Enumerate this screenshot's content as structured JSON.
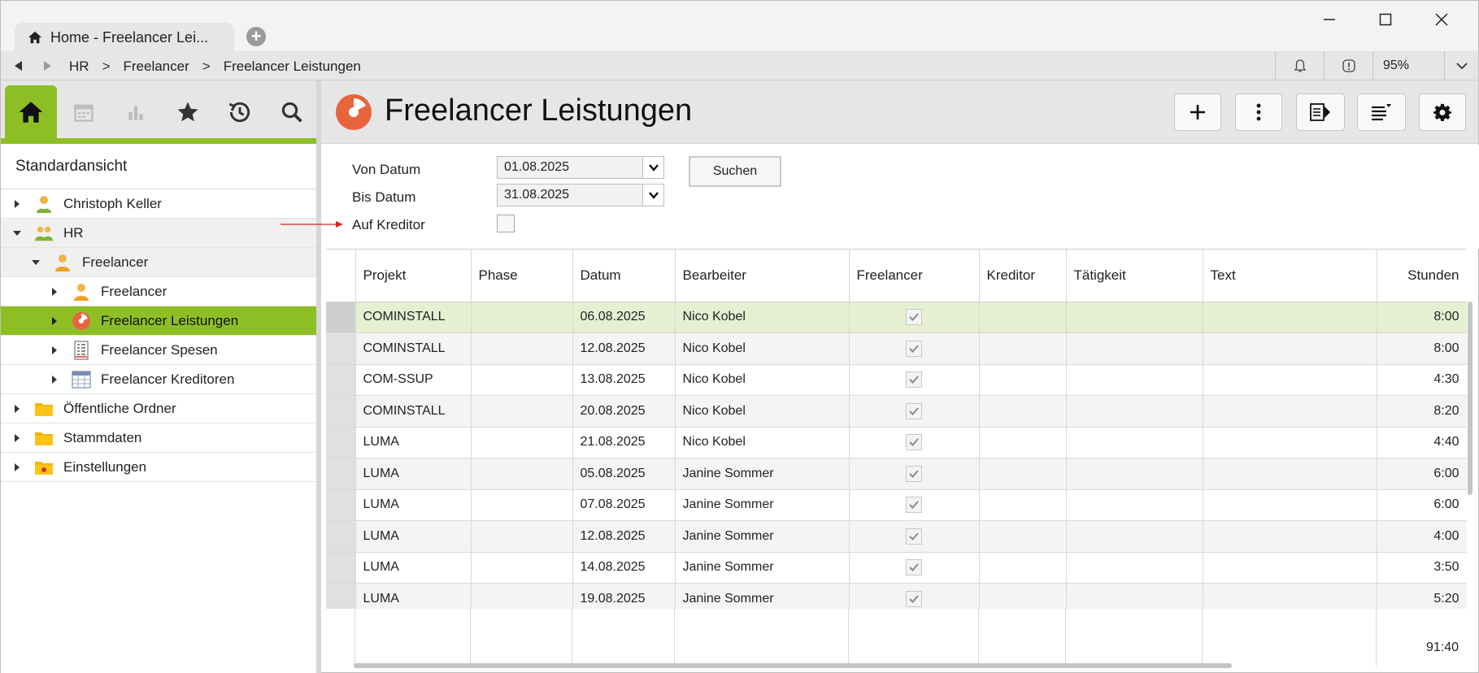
{
  "window": {
    "tab_title": "Home - Freelancer Lei...",
    "new_tab_symbol": "+"
  },
  "addressbar": {
    "breadcrumbs": [
      "HR",
      "Freelancer",
      "Freelancer Leistungen"
    ],
    "separator": ">",
    "zoom": "95%"
  },
  "sidebar": {
    "title": "Standardansicht",
    "tree": [
      {
        "label": "Christoph Keller",
        "level": 0,
        "expanded": false,
        "icon": "person-icon"
      },
      {
        "label": "HR",
        "level": 0,
        "expanded": true,
        "icon": "group-icon"
      },
      {
        "label": "Freelancer",
        "level": 1,
        "expanded": true,
        "icon": "person-icon"
      },
      {
        "label": "Freelancer",
        "level": 2,
        "expanded": false,
        "icon": "person-icon"
      },
      {
        "label": "Freelancer Leistungen",
        "level": 2,
        "expanded": false,
        "icon": "pie-icon",
        "selected": true
      },
      {
        "label": "Freelancer Spesen",
        "level": 2,
        "expanded": false,
        "icon": "receipt-icon"
      },
      {
        "label": "Freelancer Kreditoren",
        "level": 2,
        "expanded": false,
        "icon": "table-icon"
      },
      {
        "label": "Öffentliche Ordner",
        "level": 0,
        "expanded": false,
        "icon": "folder-icon"
      },
      {
        "label": "Stammdaten",
        "level": 0,
        "expanded": false,
        "icon": "folder-icon"
      },
      {
        "label": "Einstellungen",
        "level": 0,
        "expanded": false,
        "icon": "settings-folder-icon"
      }
    ]
  },
  "main": {
    "title": "Freelancer Leistungen",
    "filters": {
      "von_label": "Von Datum",
      "von_value": "01.08.2025",
      "bis_label": "Bis Datum",
      "bis_value": "31.08.2025",
      "kreditor_label": "Auf Kreditor",
      "search_label": "Suchen"
    },
    "columns": [
      "Projekt",
      "Phase",
      "Datum",
      "Bearbeiter",
      "Freelancer",
      "Kreditor",
      "Tätigkeit",
      "Text",
      "Stunden"
    ],
    "rows": [
      {
        "projekt": "COMINSTALL",
        "phase": "",
        "datum": "06.08.2025",
        "bearbeiter": "Nico Kobel",
        "freelancer": true,
        "kreditor": "",
        "taetigkeit": "",
        "text": "",
        "stunden": "8:00"
      },
      {
        "projekt": "COMINSTALL",
        "phase": "",
        "datum": "12.08.2025",
        "bearbeiter": "Nico Kobel",
        "freelancer": true,
        "kreditor": "",
        "taetigkeit": "",
        "text": "",
        "stunden": "8:00"
      },
      {
        "projekt": "COM-SSUP",
        "phase": "",
        "datum": "13.08.2025",
        "bearbeiter": "Nico Kobel",
        "freelancer": true,
        "kreditor": "",
        "taetigkeit": "",
        "text": "",
        "stunden": "4:30"
      },
      {
        "projekt": "COMINSTALL",
        "phase": "",
        "datum": "20.08.2025",
        "bearbeiter": "Nico Kobel",
        "freelancer": true,
        "kreditor": "",
        "taetigkeit": "",
        "text": "",
        "stunden": "8:20"
      },
      {
        "projekt": "LUMA",
        "phase": "",
        "datum": "21.08.2025",
        "bearbeiter": "Nico Kobel",
        "freelancer": true,
        "kreditor": "",
        "taetigkeit": "",
        "text": "",
        "stunden": "4:40"
      },
      {
        "projekt": "LUMA",
        "phase": "",
        "datum": "05.08.2025",
        "bearbeiter": "Janine Sommer",
        "freelancer": true,
        "kreditor": "",
        "taetigkeit": "",
        "text": "",
        "stunden": "6:00"
      },
      {
        "projekt": "LUMA",
        "phase": "",
        "datum": "07.08.2025",
        "bearbeiter": "Janine Sommer",
        "freelancer": true,
        "kreditor": "",
        "taetigkeit": "",
        "text": "",
        "stunden": "6:00"
      },
      {
        "projekt": "LUMA",
        "phase": "",
        "datum": "12.08.2025",
        "bearbeiter": "Janine Sommer",
        "freelancer": true,
        "kreditor": "",
        "taetigkeit": "",
        "text": "",
        "stunden": "4:00"
      },
      {
        "projekt": "LUMA",
        "phase": "",
        "datum": "14.08.2025",
        "bearbeiter": "Janine Sommer",
        "freelancer": true,
        "kreditor": "",
        "taetigkeit": "",
        "text": "",
        "stunden": "3:50"
      },
      {
        "projekt": "LUMA",
        "phase": "",
        "datum": "19.08.2025",
        "bearbeiter": "Janine Sommer",
        "freelancer": true,
        "kreditor": "",
        "taetigkeit": "",
        "text": "",
        "stunden": "5:20"
      }
    ],
    "total_stunden": "91:40"
  },
  "colors": {
    "accent_green": "#8dbf24",
    "selected_row": "#e6efd2",
    "logo_orange": "#e8643c",
    "annotation_red": "#e02020"
  }
}
